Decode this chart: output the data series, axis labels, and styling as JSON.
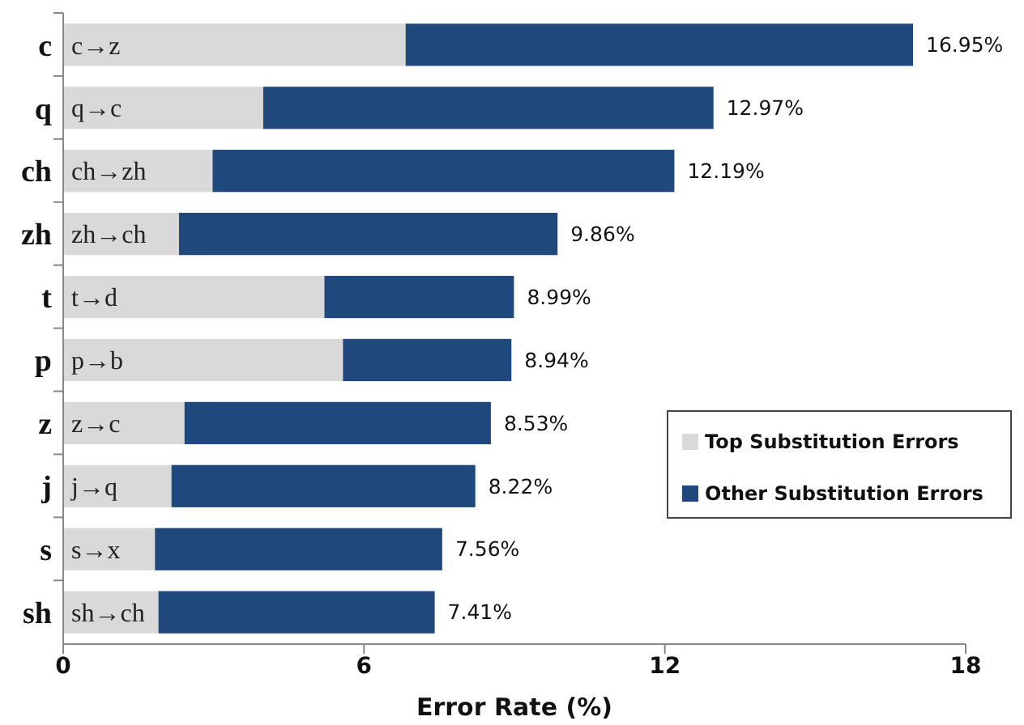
{
  "chart_data": {
    "type": "bar",
    "orientation": "horizontal",
    "stacked": true,
    "xlabel": "Error Rate (%)",
    "categories": [
      "c",
      "q",
      "ch",
      "zh",
      "t",
      "p",
      "z",
      "j",
      "s",
      "sh"
    ],
    "series": [
      {
        "name": "Top Substitution Errors",
        "color": "#d9d9d9",
        "values": [
          6.83,
          3.99,
          2.98,
          2.31,
          5.21,
          5.58,
          2.42,
          2.16,
          1.83,
          1.9
        ],
        "value_labels": [
          "c→z",
          "q→c",
          "ch→zh",
          "zh→ch",
          "t→d",
          "p→b",
          "z→c",
          "j→q",
          "s→x",
          "sh→ch"
        ]
      },
      {
        "name": "Other Substitution Errors",
        "color": "#1f497d",
        "values": [
          10.12,
          8.98,
          9.21,
          7.55,
          3.78,
          3.36,
          6.11,
          6.06,
          5.73,
          5.51
        ]
      }
    ],
    "totals": [
      "16.95%",
      "12.97%",
      "12.19%",
      "9.86%",
      "8.99%",
      "8.94%",
      "8.53%",
      "8.22%",
      "7.56%",
      "7.41%"
    ],
    "xlim": [
      0,
      18
    ],
    "xticks": [
      0,
      6,
      12,
      18
    ],
    "grid": false,
    "legend": "bottom right"
  }
}
